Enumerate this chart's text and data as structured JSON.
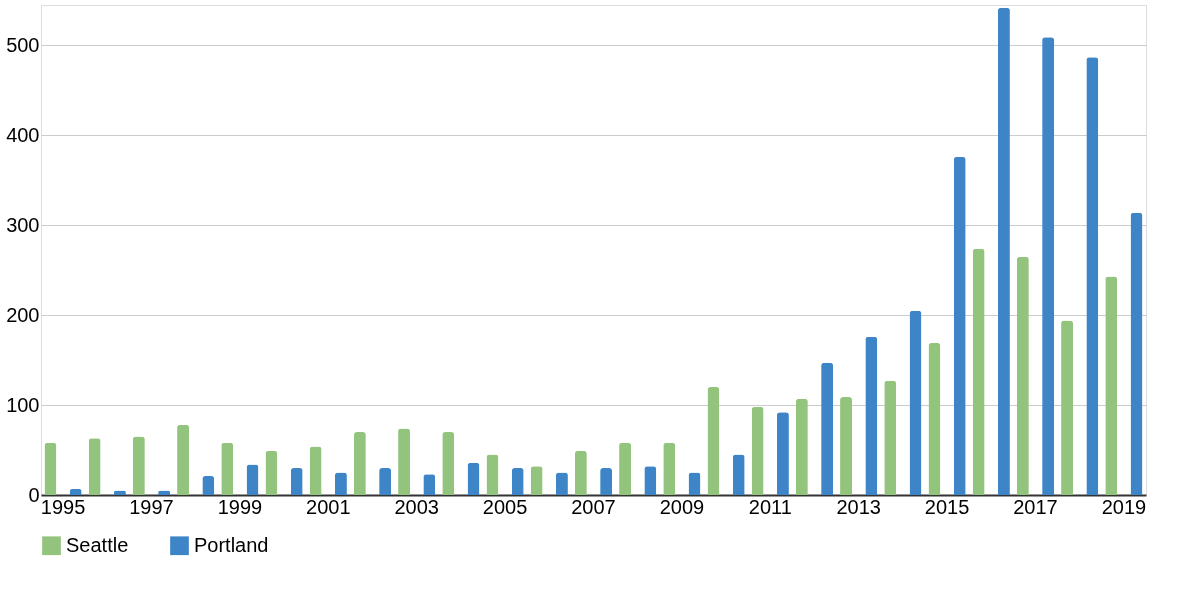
{
  "chart_data": {
    "type": "bar",
    "categories": [
      "1995",
      null,
      "1997",
      null,
      "1999",
      null,
      "2001",
      null,
      "2003",
      null,
      "2005",
      null,
      "2007",
      null,
      "2009",
      null,
      "2011",
      null,
      "2013",
      null,
      "2015",
      null,
      "2017",
      null,
      "2019"
    ],
    "series": [
      {
        "name": "Seattle",
        "color": "#93c47d",
        "values": [
          58,
          63,
          65,
          78,
          58,
          49,
          54,
          70,
          74,
          70,
          45,
          32,
          49,
          58,
          58,
          120,
          98,
          107,
          109,
          127,
          169,
          274,
          265,
          194,
          243
        ]
      },
      {
        "name": "Portland",
        "color": "#3d85c6",
        "values": [
          7,
          5,
          5,
          21,
          34,
          30,
          25,
          30,
          23,
          36,
          30,
          25,
          30,
          32,
          25,
          45,
          92,
          147,
          176,
          205,
          376,
          542,
          509,
          487,
          314
        ]
      }
    ],
    "ylim": [
      0,
      545
    ],
    "yticks": [
      0,
      100,
      200,
      300,
      400,
      500
    ],
    "grid": "y",
    "legend": "bottom"
  }
}
